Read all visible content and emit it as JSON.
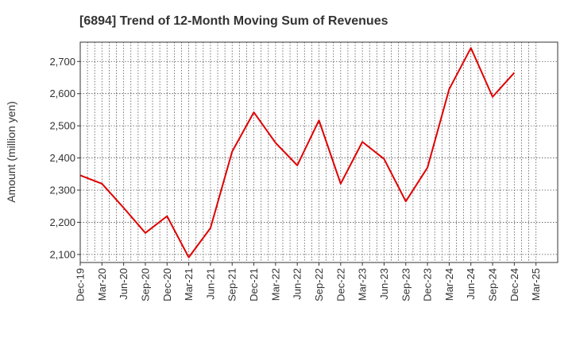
{
  "chart_data": {
    "type": "line",
    "title": "[6894]  Trend of 12-Month Moving Sum of Revenues",
    "ylabel": "Amount (million yen)",
    "xlabel": "",
    "ylim": [
      2075,
      2760
    ],
    "yticks": [
      2100,
      2200,
      2300,
      2400,
      2500,
      2600,
      2700
    ],
    "ytick_labels": [
      "2,100",
      "2,200",
      "2,300",
      "2,400",
      "2,500",
      "2,600",
      "2,700"
    ],
    "categories": [
      "Dec-19",
      "Mar-20",
      "Jun-20",
      "Sep-20",
      "Dec-20",
      "Mar-21",
      "Jun-21",
      "Sep-21",
      "Dec-21",
      "Mar-22",
      "Jun-22",
      "Sep-22",
      "Dec-22",
      "Mar-23",
      "Jun-23",
      "Sep-23",
      "Dec-23",
      "Mar-24",
      "Jun-24",
      "Sep-24",
      "Dec-24",
      "Mar-25"
    ],
    "grid": true,
    "series": [
      {
        "color": "#e00000",
        "values": [
          2346,
          2320,
          2245,
          2167,
          2219,
          2091,
          2182,
          2420,
          2542,
          2447,
          2377,
          2517,
          2320,
          2450,
          2397,
          2265,
          2370,
          2614,
          2742,
          2590,
          2665,
          null
        ]
      }
    ]
  }
}
